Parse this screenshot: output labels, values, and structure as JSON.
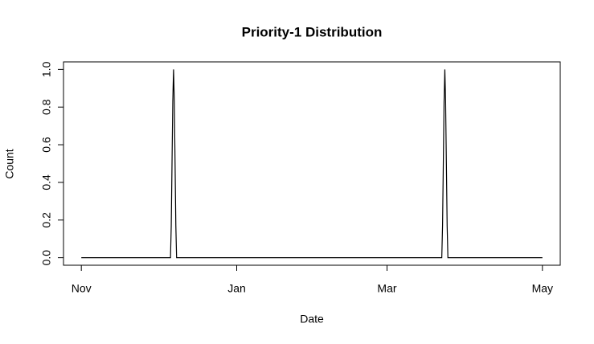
{
  "chart_data": {
    "type": "line",
    "title": "Priority-1 Distribution",
    "x_label": "Date",
    "y_label": "Count",
    "x": [
      0,
      35,
      35.3,
      35.6,
      35.9,
      36.2,
      36.5,
      36.8,
      37.1,
      37.4,
      141.5,
      141.8,
      142.1,
      142.4,
      142.7,
      143.0,
      143.3,
      143.6,
      143.9,
      181
    ],
    "values": [
      0,
      0,
      0.17,
      0.5,
      0.83,
      1,
      0.83,
      0.5,
      0.17,
      0,
      0,
      0.17,
      0.5,
      0.83,
      1,
      0.83,
      0.5,
      0.17,
      0,
      0
    ],
    "color": "#000000",
    "xlim": [
      -7,
      188
    ],
    "xticks": [
      {
        "value": 0,
        "label": "Nov"
      },
      {
        "value": 61,
        "label": "Jan"
      },
      {
        "value": 120,
        "label": "Mar"
      },
      {
        "value": 181,
        "label": "May"
      }
    ],
    "ylim": [
      -0.04,
      1.04
    ],
    "yticks": [
      {
        "value": 0,
        "label": "0.0"
      },
      {
        "value": 0.2,
        "label": "0.2"
      },
      {
        "value": 0.4,
        "label": "0.4"
      },
      {
        "value": 0.6,
        "label": "0.6"
      },
      {
        "value": 0.8,
        "label": "0.8"
      },
      {
        "value": 1,
        "label": "1.0"
      }
    ],
    "grid": false
  }
}
